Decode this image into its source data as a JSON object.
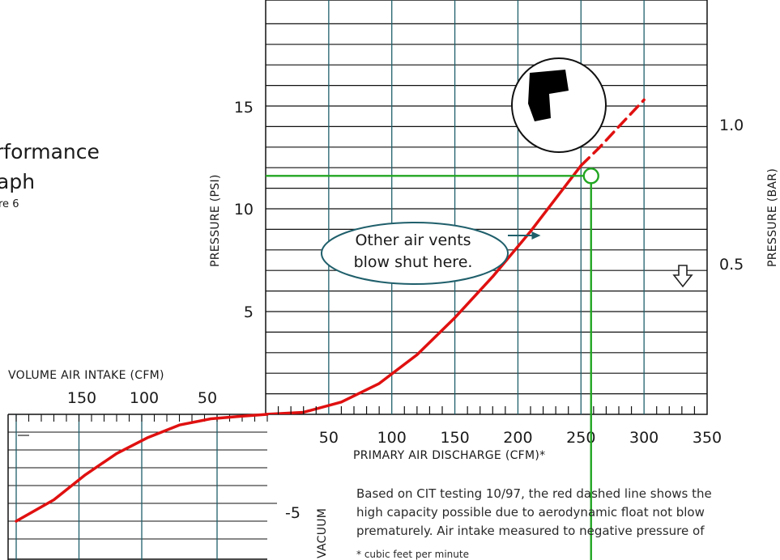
{
  "title": {
    "line1": "rformance",
    "line2": "aph",
    "figure": "re 6"
  },
  "colors": {
    "grid": "#1f5f6b",
    "curve": "#e01010",
    "marker": "#22a622",
    "callout": "#1f5f6b"
  },
  "chart_data": {
    "type": "line",
    "main_panel": {
      "xlabel": "PRIMARY AIR DISCHARGE (CFM)*",
      "ylabel_left": "PRESSURE (PSI)",
      "ylabel_right": "PRESSURE (BAR)",
      "xlim": [
        0,
        350
      ],
      "ylim": [
        0,
        20
      ],
      "x_ticks": [
        "50",
        "100",
        "150",
        "200",
        "250",
        "300",
        "350"
      ],
      "y_ticks_left": [
        "5",
        "10",
        "15"
      ],
      "y_ticks_right": [
        "0.5",
        "1.0"
      ],
      "series": [
        {
          "style": "solid",
          "x": [
            0,
            30,
            60,
            90,
            120,
            150,
            180,
            210,
            240,
            250
          ],
          "y": [
            0,
            0.1,
            0.6,
            1.5,
            2.9,
            4.7,
            6.7,
            8.9,
            11.3,
            12.1
          ]
        },
        {
          "style": "dashed",
          "x": [
            250,
            265,
            280,
            300
          ],
          "y": [
            12.1,
            13.0,
            14.0,
            15.3
          ]
        }
      ],
      "marker_point": {
        "x": 258,
        "y": 11.6
      },
      "annotation": {
        "line1": "Other air vents",
        "line2": "blow shut here.",
        "target": {
          "x": 218,
          "y": 8.7
        }
      }
    },
    "intake_panel": {
      "xlabel": "VOLUME AIR INTAKE (CFM)",
      "ylabel": "VACUUM",
      "x_ticks": [
        "150",
        "100",
        "50"
      ],
      "y_ticks": [
        "-5"
      ],
      "series": [
        {
          "style": "solid",
          "x": [
            200,
            170,
            145,
            120,
            95,
            70,
            45,
            20,
            0
          ],
          "y": [
            -6,
            -4.8,
            -3.4,
            -2.2,
            -1.3,
            -0.6,
            -0.25,
            -0.1,
            0
          ]
        }
      ]
    }
  },
  "notes": {
    "line1": "Based on CIT testing 10/97, the red dashed line shows the",
    "line2": "high capacity possible due to aerodynamic float not blow",
    "line3": "prematurely. Air intake measured to negative pressure of",
    "footnote": "* cubic feet per minute"
  }
}
